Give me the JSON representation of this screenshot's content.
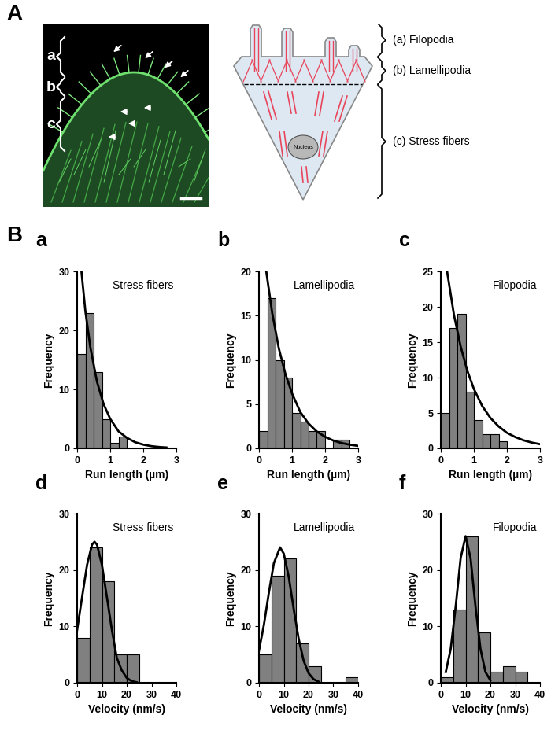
{
  "panel_labels": [
    "A",
    "B"
  ],
  "panel_a": {
    "image_labels": [
      "a",
      "b",
      "c"
    ],
    "diagram": {
      "labels": [
        "(a) Filopodia",
        "(b) Lamellipodia",
        "(c) Stress fibers"
      ],
      "nucleus": "Nucleus"
    }
  },
  "chart_data": [
    {
      "type": "histogram",
      "panel": "a",
      "title": "Stress fibers",
      "x_label": "Run length (µm)",
      "y_label": "Frequency",
      "bins": [
        0,
        0.25,
        0.5,
        0.75,
        1.0,
        1.25,
        1.5
      ],
      "counts": [
        16,
        23,
        13,
        5,
        1,
        2
      ],
      "color": "#808080",
      "xlim": [
        0,
        3
      ],
      "ylim": [
        0,
        30
      ],
      "xticks": [
        0,
        1,
        2,
        3
      ],
      "yticks": [
        0,
        10,
        20,
        30
      ],
      "series": [
        {
          "type": "line",
          "color": "#000000",
          "x": [
            0.13,
            0.25,
            0.4,
            0.6,
            0.8,
            1.0,
            1.25,
            1.5,
            1.75,
            2.0,
            2.25,
            2.5,
            2.7
          ],
          "values": [
            30,
            23.2,
            17.1,
            11.3,
            7.5,
            5.0,
            2.9,
            1.8,
            1.05,
            0.63,
            0.37,
            0.22,
            0.15
          ]
        }
      ]
    },
    {
      "type": "histogram",
      "panel": "b",
      "title": "Lamellipodia",
      "x_label": "Run length (µm)",
      "y_label": "Frequency",
      "bins": [
        0,
        0.25,
        0.5,
        0.75,
        1.0,
        1.25,
        1.5,
        1.75,
        2.0,
        2.25,
        2.5,
        2.75
      ],
      "counts": [
        2,
        17,
        10,
        8,
        4,
        3,
        2,
        2,
        0,
        1,
        1
      ],
      "color": "#808080",
      "xlim": [
        0,
        3
      ],
      "ylim": [
        0,
        20
      ],
      "xticks": [
        0,
        1,
        2,
        3
      ],
      "yticks": [
        0,
        5,
        10,
        15,
        20
      ],
      "series": [
        {
          "type": "line",
          "color": "#000000",
          "x": [
            0.22,
            0.4,
            0.6,
            0.8,
            1.0,
            1.25,
            1.5,
            1.75,
            2.0,
            2.25,
            2.5,
            2.75,
            3.0
          ],
          "values": [
            20,
            15.3,
            11.3,
            8.4,
            6.2,
            4.1,
            2.8,
            1.9,
            1.3,
            0.88,
            0.6,
            0.41,
            0.28
          ]
        }
      ]
    },
    {
      "type": "histogram",
      "panel": "c",
      "title": "Filopodia",
      "x_label": "Run length (µm)",
      "y_label": "Frequency",
      "bins": [
        0,
        0.25,
        0.5,
        0.75,
        1.0,
        1.25,
        1.5,
        1.75,
        2.0
      ],
      "counts": [
        5,
        17,
        19,
        8,
        4,
        2,
        2,
        1
      ],
      "color": "#808080",
      "xlim": [
        0,
        3
      ],
      "ylim": [
        0,
        25
      ],
      "xticks": [
        0,
        1,
        2,
        3
      ],
      "yticks": [
        0,
        5,
        10,
        15,
        20,
        25
      ],
      "series": [
        {
          "type": "line",
          "color": "#000000",
          "x": [
            0.19,
            0.4,
            0.6,
            0.8,
            1.0,
            1.25,
            1.5,
            1.75,
            2.0,
            2.25,
            2.5,
            2.75,
            3.0
          ],
          "values": [
            25,
            18.8,
            14.4,
            11.0,
            8.4,
            6.0,
            4.3,
            3.1,
            2.2,
            1.6,
            1.14,
            0.82,
            0.59
          ]
        }
      ]
    },
    {
      "type": "histogram",
      "panel": "d",
      "title": "Stress fibers",
      "x_label": "Velocity (nm/s)",
      "y_label": "Frequency",
      "bins": [
        0,
        5,
        10,
        15,
        20,
        25
      ],
      "counts": [
        8,
        24,
        18,
        5,
        5
      ],
      "color": "#808080",
      "xlim": [
        0,
        40
      ],
      "ylim": [
        0,
        30
      ],
      "xticks": [
        0,
        10,
        20,
        30,
        40
      ],
      "yticks": [
        0,
        10,
        20,
        30
      ],
      "series": [
        {
          "type": "line",
          "color": "#000000",
          "x": [
            0,
            2,
            4,
            6,
            7,
            8,
            10,
            12,
            14,
            16,
            18,
            20,
            22,
            24
          ],
          "values": [
            9.4,
            15.2,
            20.9,
            24.5,
            25,
            24.5,
            20.9,
            15.2,
            9.4,
            4.4,
            2.2,
            0.85,
            0.28,
            0.08
          ]
        }
      ]
    },
    {
      "type": "histogram",
      "panel": "e",
      "title": "Lamellipodia",
      "x_label": "Velocity (nm/s)",
      "y_label": "Frequency",
      "bins": [
        0,
        5,
        10,
        15,
        20,
        25,
        30,
        35,
        40
      ],
      "counts": [
        5,
        19,
        22,
        7,
        3,
        0,
        0,
        1
      ],
      "color": "#808080",
      "xlim": [
        0,
        40
      ],
      "ylim": [
        0,
        30
      ],
      "xticks": [
        0,
        10,
        20,
        30,
        40
      ],
      "yticks": [
        0,
        10,
        20,
        30
      ],
      "series": [
        {
          "type": "line",
          "color": "#000000",
          "x": [
            0,
            2,
            4,
            6,
            8.5,
            10,
            12,
            14,
            16,
            18,
            20,
            22,
            24
          ],
          "values": [
            5.7,
            10.3,
            16.0,
            21.2,
            24,
            22.9,
            18.8,
            13.1,
            7.8,
            3.9,
            1.7,
            0.63,
            0.2
          ]
        }
      ]
    },
    {
      "type": "histogram",
      "panel": "f",
      "title": "Filopodia",
      "x_label": "Velocity (nm/s)",
      "y_label": "Frequency",
      "bins": [
        0,
        5,
        10,
        15,
        20,
        25,
        30,
        35
      ],
      "counts": [
        1,
        13,
        26,
        9,
        2,
        3,
        2
      ],
      "color": "#808080",
      "xlim": [
        0,
        40
      ],
      "ylim": [
        0,
        30
      ],
      "xticks": [
        0,
        10,
        20,
        30,
        40
      ],
      "yticks": [
        0,
        10,
        20,
        30
      ],
      "series": [
        {
          "type": "line",
          "color": "#000000",
          "x": [
            2,
            4,
            6,
            8,
            10,
            12,
            14,
            16,
            18,
            20
          ],
          "values": [
            1.9,
            6.0,
            13.5,
            22.1,
            26,
            22.1,
            13.5,
            6.0,
            1.9,
            0.44
          ]
        }
      ]
    }
  ]
}
